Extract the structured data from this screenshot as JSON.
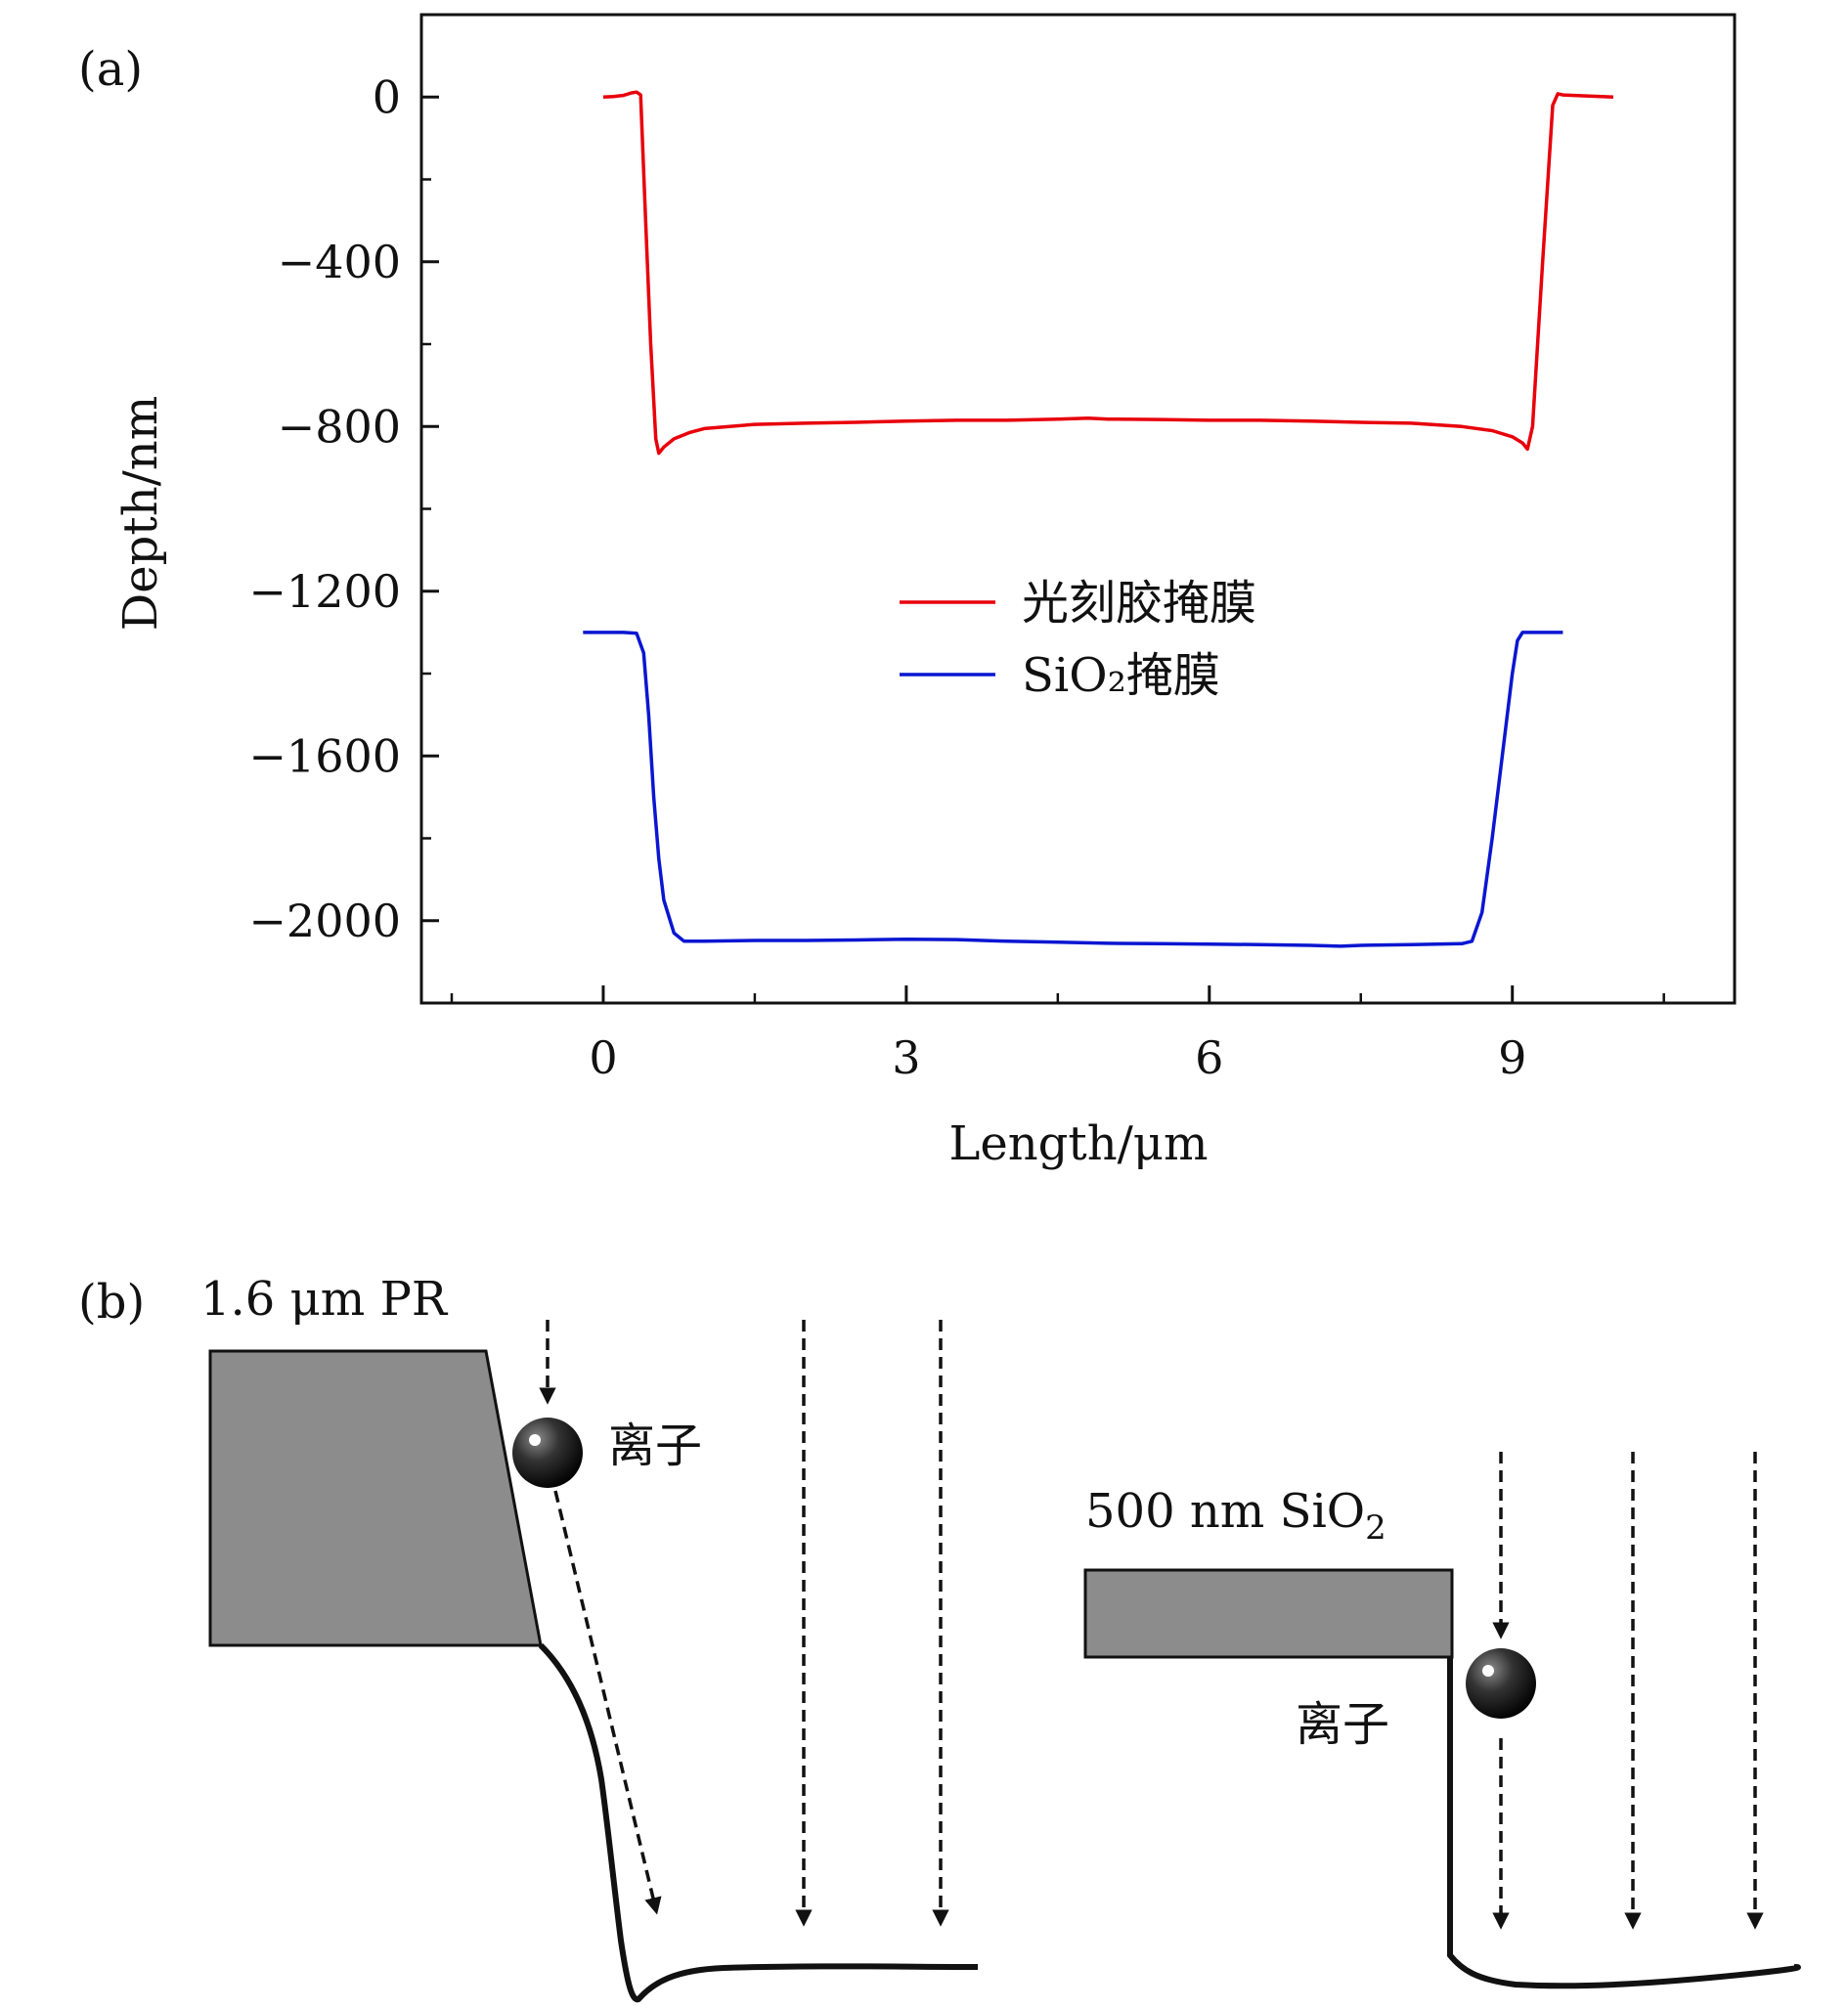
{
  "panel_a": {
    "label": "(a)",
    "chart_data": {
      "type": "line",
      "xlabel": "Length/μm",
      "ylabel": "Depth/nm",
      "xlim": [
        -1.8,
        11.2
      ],
      "ylim": [
        -2200,
        200
      ],
      "x_ticks": [
        0,
        3,
        6,
        9
      ],
      "x_tick_labels": [
        "0",
        "3",
        "6",
        "9"
      ],
      "x_minor_ticks": [
        -1.5,
        1.5,
        4.5,
        7.5,
        10.5
      ],
      "y_ticks": [
        0,
        -400,
        -800,
        -1200,
        -1600,
        -2000
      ],
      "y_tick_labels": [
        "0",
        "−400",
        "−800",
        "−1200",
        "−1600",
        "−2000"
      ],
      "y_minor_ticks": [
        -200,
        -600,
        -1000,
        -1400,
        -1800
      ],
      "grid": false,
      "legend_position": "center",
      "series": [
        {
          "name": "光刻胶掩膜",
          "color": "#e8000b",
          "points": [
            [
              0,
              0
            ],
            [
              0.1,
              1
            ],
            [
              0.2,
              4
            ],
            [
              0.28,
              10
            ],
            [
              0.33,
              12
            ],
            [
              0.37,
              5
            ],
            [
              0.42,
              -300
            ],
            [
              0.47,
              -600
            ],
            [
              0.52,
              -830
            ],
            [
              0.55,
              -865
            ],
            [
              0.6,
              -850
            ],
            [
              0.7,
              -830
            ],
            [
              0.85,
              -815
            ],
            [
              1,
              -805
            ],
            [
              1.5,
              -795
            ],
            [
              2,
              -792
            ],
            [
              2.5,
              -790
            ],
            [
              3,
              -787
            ],
            [
              3.5,
              -785
            ],
            [
              4,
              -785
            ],
            [
              4.5,
              -782
            ],
            [
              4.8,
              -780
            ],
            [
              5,
              -782
            ],
            [
              5.5,
              -783
            ],
            [
              6,
              -785
            ],
            [
              6.5,
              -785
            ],
            [
              7,
              -787
            ],
            [
              7.5,
              -790
            ],
            [
              8,
              -792
            ],
            [
              8.5,
              -800
            ],
            [
              8.8,
              -810
            ],
            [
              9,
              -825
            ],
            [
              9.1,
              -840
            ],
            [
              9.15,
              -855
            ],
            [
              9.2,
              -800
            ],
            [
              9.3,
              -400
            ],
            [
              9.4,
              -20
            ],
            [
              9.45,
              8
            ],
            [
              9.5,
              5
            ],
            [
              9.7,
              3
            ],
            [
              10,
              0
            ]
          ]
        },
        {
          "name": "SiO₂掩膜",
          "color": "#0a16d1",
          "points": [
            [
              -0.2,
              -1300
            ],
            [
              0,
              -1300
            ],
            [
              0.2,
              -1300
            ],
            [
              0.33,
              -1302
            ],
            [
              0.4,
              -1350
            ],
            [
              0.45,
              -1500
            ],
            [
              0.5,
              -1700
            ],
            [
              0.55,
              -1850
            ],
            [
              0.6,
              -1950
            ],
            [
              0.7,
              -2030
            ],
            [
              0.8,
              -2050
            ],
            [
              1,
              -2050
            ],
            [
              1.5,
              -2048
            ],
            [
              2,
              -2048
            ],
            [
              2.5,
              -2047
            ],
            [
              3,
              -2045
            ],
            [
              3.5,
              -2046
            ],
            [
              4,
              -2050
            ],
            [
              4.5,
              -2052
            ],
            [
              5,
              -2055
            ],
            [
              5.5,
              -2056
            ],
            [
              6,
              -2057
            ],
            [
              6.5,
              -2058
            ],
            [
              7,
              -2060
            ],
            [
              7.3,
              -2062
            ],
            [
              7.5,
              -2060
            ],
            [
              8,
              -2058
            ],
            [
              8.5,
              -2056
            ],
            [
              8.6,
              -2050
            ],
            [
              8.7,
              -1980
            ],
            [
              8.8,
              -1800
            ],
            [
              8.9,
              -1600
            ],
            [
              9,
              -1400
            ],
            [
              9.05,
              -1320
            ],
            [
              9.1,
              -1300
            ],
            [
              9.3,
              -1300
            ],
            [
              9.5,
              -1300
            ]
          ]
        }
      ]
    }
  },
  "panel_b": {
    "label": "(b)",
    "pr_label": "1.6 μm PR",
    "sio2_label_main": "500 nm SiO",
    "sio2_label_sub": "2",
    "ion_label": "离子",
    "mask_fill": "#8c8c8c"
  }
}
